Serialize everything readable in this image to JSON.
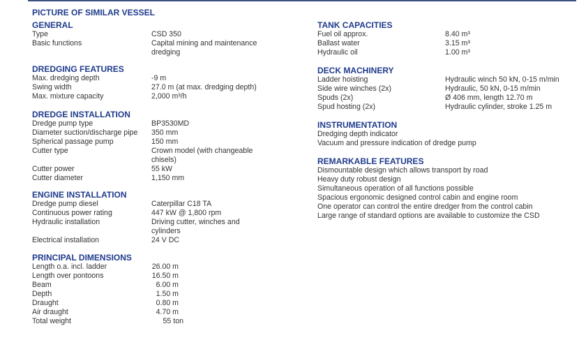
{
  "title": "PICTURE OF SIMILAR VESSEL",
  "left": [
    {
      "heading": "GENERAL",
      "rows": [
        {
          "label": "Type",
          "value": "CSD 350"
        },
        {
          "label": "Basic functions",
          "value": "Capital mining and maintenance dredging"
        }
      ]
    },
    {
      "heading": "DREDGING FEATURES",
      "rows": [
        {
          "label": "Max. dredging depth",
          "value": "-9 m"
        },
        {
          "label": "Swing width",
          "value": "27.0 m (at max. dredging depth)"
        },
        {
          "label": "Max. mixture capacity",
          "value": "2,000  m³/h"
        }
      ]
    },
    {
      "heading": "DREDGE INSTALLATION",
      "rows": [
        {
          "label": "Dredge pump type",
          "value": "BP3530MD"
        },
        {
          "label": "Diameter suction/discharge pipe",
          "value": "350 mm"
        },
        {
          "label": "Spherical passage pump",
          "value": "150 mm"
        },
        {
          "label": "Cutter type",
          "value": "Crown model (with changeable chisels)"
        },
        {
          "label": "Cutter power",
          "value": "55 kW"
        },
        {
          "label": "Cutter diameter",
          "value": "1,150 mm"
        }
      ]
    },
    {
      "heading": "ENGINE INSTALLATION",
      "rows": [
        {
          "label": "Dredge pump diesel",
          "value": "Caterpillar C18 TA"
        },
        {
          "label": "Continuous power rating",
          "value": "447 kW @ 1,800 rpm"
        },
        {
          "label": "Hydraulic installation",
          "value": "Driving cutter, winches and cylinders"
        },
        {
          "label": "Electrical installation",
          "value": "24 V DC"
        }
      ]
    },
    {
      "heading": "PRINCIPAL DIMENSIONS",
      "rows": [
        {
          "label": "Length o.a. incl. ladder",
          "value": "26.00 m"
        },
        {
          "label": "Length over pontoons",
          "value": "16.50 m"
        },
        {
          "label": "Beam",
          "value": "6.00 m"
        },
        {
          "label": "Depth",
          "value": "1.50 m"
        },
        {
          "label": "Draught",
          "value": "0.80 m"
        },
        {
          "label": "Air draught",
          "value": "4.70 m"
        },
        {
          "label": "Total weight",
          "value": "55 ton"
        }
      ]
    }
  ],
  "right": [
    {
      "heading": "TANK CAPACITIES",
      "rows": [
        {
          "label": "Fuel oil approx.",
          "value": "8.40 m³"
        },
        {
          "label": "Ballast water",
          "value": "3.15 m³"
        },
        {
          "label": "Hydraulic oil",
          "value": "1.00 m³"
        }
      ]
    },
    {
      "heading": "DECK MACHINERY",
      "rows": [
        {
          "label": "Ladder hoisting",
          "value": "Hydraulic winch 50 kN, 0-15 m/min"
        },
        {
          "label": "Side wire winches (2x)",
          "value": "Hydraulic, 50 kN, 0-15 m/min"
        },
        {
          "label": "Spuds (2x)",
          "value": "Ø 406 mm, length 12.70 m"
        },
        {
          "label": "Spud hosting (2x)",
          "value": "Hydraulic cylinder, stroke 1.25 m"
        }
      ]
    },
    {
      "heading": "INSTRUMENTATION",
      "lines": [
        "Dredging depth indicator",
        "Vacuum and pressure indication of dredge pump"
      ]
    },
    {
      "heading": "REMARKABLE FEATURES",
      "lines": [
        "Dismountable design which allows transport by road",
        "Heavy duty robust design",
        "Simultaneous operation of all functions possible",
        "Spacious ergonomic designed control cabin and engine room",
        "One operator can control the entire dredger from the control cabin",
        "Large range of standard options are available to customize the CSD"
      ]
    }
  ],
  "colors": {
    "heading": "#1f3b8c",
    "text": "#333333",
    "rule": "#3c4f7f"
  }
}
